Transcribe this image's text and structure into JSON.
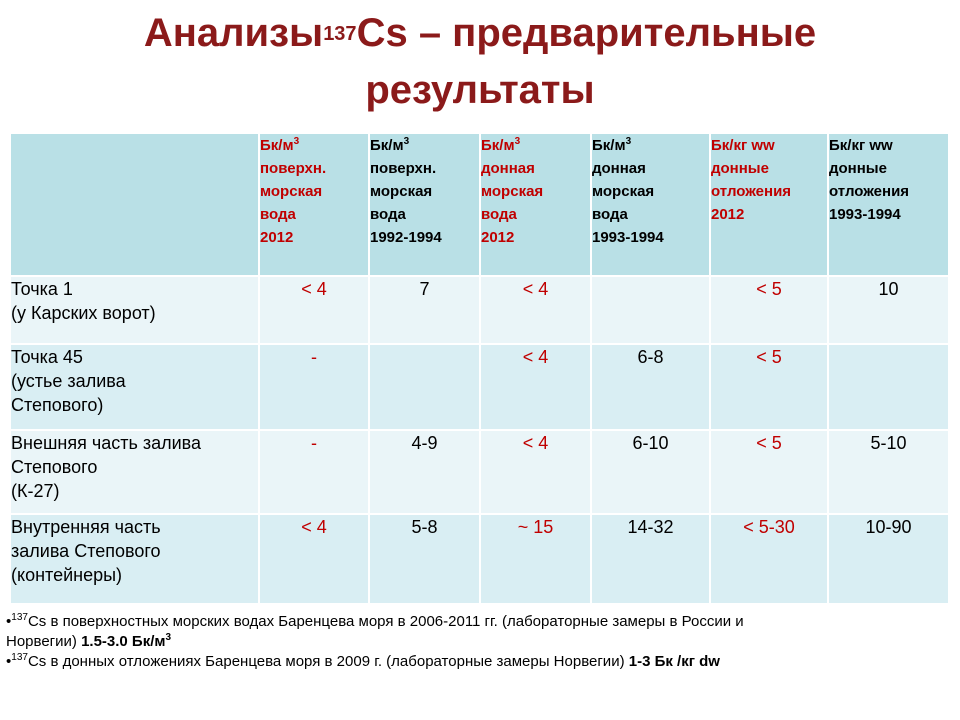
{
  "title": {
    "prefix": "Анализы",
    "superscript": "137",
    "element": "Cs",
    "rest_line1": " – предварительные",
    "line2": "результаты"
  },
  "table": {
    "headers": [
      {
        "color": "red",
        "lines": [
          "Бк/м|3",
          "поверхн.",
          "морская",
          "вода",
          "2012"
        ]
      },
      {
        "color": "black",
        "lines": [
          "Бк/м|3",
          "поверхн.",
          "морская",
          "вода",
          "1992-1994"
        ]
      },
      {
        "color": "red",
        "lines": [
          "Бк/м|3",
          "донная",
          "морская",
          "вода",
          "2012"
        ]
      },
      {
        "color": "black",
        "lines": [
          "Бк/м|3",
          "донная",
          "морская",
          "вода",
          "1993-1994"
        ]
      },
      {
        "color": "red",
        "lines": [
          "Бк/кг ww",
          "донные",
          "отложения",
          "2012"
        ]
      },
      {
        "color": "black",
        "lines": [
          "Бк/кг ww",
          "донные",
          "отложения",
          "1993-1994"
        ]
      }
    ],
    "rows": [
      {
        "label": [
          "Точка 1",
          "(у Карских ворот)"
        ],
        "values": [
          "< 4",
          "7",
          "< 4",
          "",
          "< 5",
          "10"
        ]
      },
      {
        "label": [
          "Точка 45",
          "(устье залива",
          "Степового)"
        ],
        "values": [
          "-",
          "",
          "< 4",
          "6-8",
          "< 5",
          ""
        ]
      },
      {
        "label": [
          "Внешняя часть залива",
          "Степового",
          "(К-27)"
        ],
        "values": [
          "-",
          "4-9",
          "< 4",
          "6-10",
          "< 5",
          "5-10"
        ]
      },
      {
        "label": [
          "Внутренняя часть",
          "залива Степового",
          "(контейнеры)"
        ],
        "values": [
          "< 4",
          "5-8",
          "~ 15",
          "14-32",
          "< 5-30",
          "10-90"
        ]
      }
    ]
  },
  "notes": {
    "note1": {
      "bullet": "•",
      "sup": "137",
      "text_line1": "Cs в поверхностных морских водах Баренцева моря в 2006-2011 гг. (лабораторные замеры в России и",
      "text_line2": "Норвегии) ",
      "value": "1.5-3.0 Бк/м",
      "value_sup": "3"
    },
    "note2": {
      "bullet": "•",
      "sup": "137",
      "text": "Cs  в донных отложениях Баренцева моря в 2009  г. (лабораторные замеры Норвегии) ",
      "value": "1-3 Бк /кг dw"
    }
  },
  "colors": {
    "title": "#8b1a1a",
    "accent_red": "#c00000",
    "header_bg": "#b9e0e6",
    "row_bg_light": "#eaf5f8",
    "row_bg_alt": "#d9eef3"
  }
}
